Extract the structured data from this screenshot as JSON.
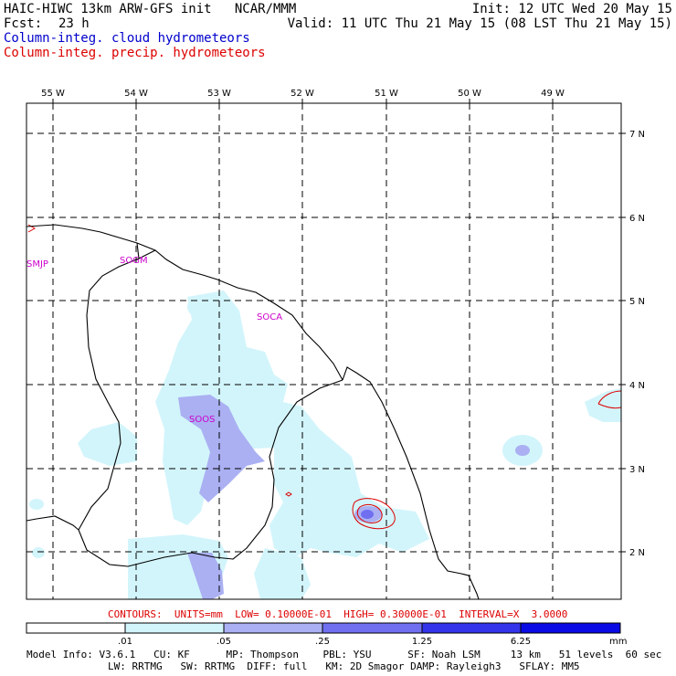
{
  "header": {
    "title_left": "HAIC-HIWC 13km ARW-GFS init   NCAR/MMM",
    "init": "Init: 12 UTC Wed 20 May 15",
    "fcst_label": "Fcst:",
    "fcst_value": "23 h",
    "valid": "Valid: 11 UTC Thu 21 May 15 (08 LST Thu 21 May 15)",
    "legend_cloud": "Column-integ. cloud hydrometeors",
    "legend_precip": "Column-integ. precip. hydrometeors",
    "legend_cloud_color": "#0000cc",
    "legend_precip_color": "#dd0000"
  },
  "map": {
    "lon_labels": [
      "55 W",
      "54 W",
      "53 W",
      "52 W",
      "51 W",
      "50 W",
      "49 W"
    ],
    "lat_labels": [
      "7 N",
      "6 N",
      "5 N",
      "4 N",
      "3 N",
      "2 N"
    ],
    "stations": [
      "SMJP",
      "SOGM",
      "SOCA",
      "SOOS"
    ],
    "station_color": "#cc00cc"
  },
  "contours_text": "CONTOURS:  UNITS=mm  LOW= 0.10000E-01  HIGH= 0.30000E-01  INTERVAL=X  3.0000",
  "colorbar": {
    "ticks": [
      ".01",
      ".05",
      ".25",
      "1.25",
      "6.25"
    ],
    "unit": "mm",
    "colors": [
      "#ffffff",
      "#d2f5fb",
      "#aab0f2",
      "#6f6ff0",
      "#3434ea",
      "#0a0ae4"
    ]
  },
  "model_info": {
    "line1": "Model Info: V3.6.1   CU: KF      MP: Thompson    PBL: YSU      SF: Noah LSM     13 km   51 levels  60 sec",
    "line2": "LW: RRTMG   SW: RRTMG  DIFF: full   KM: 2D Smagor DAMP: Rayleigh3   SFLAY: MM5"
  }
}
